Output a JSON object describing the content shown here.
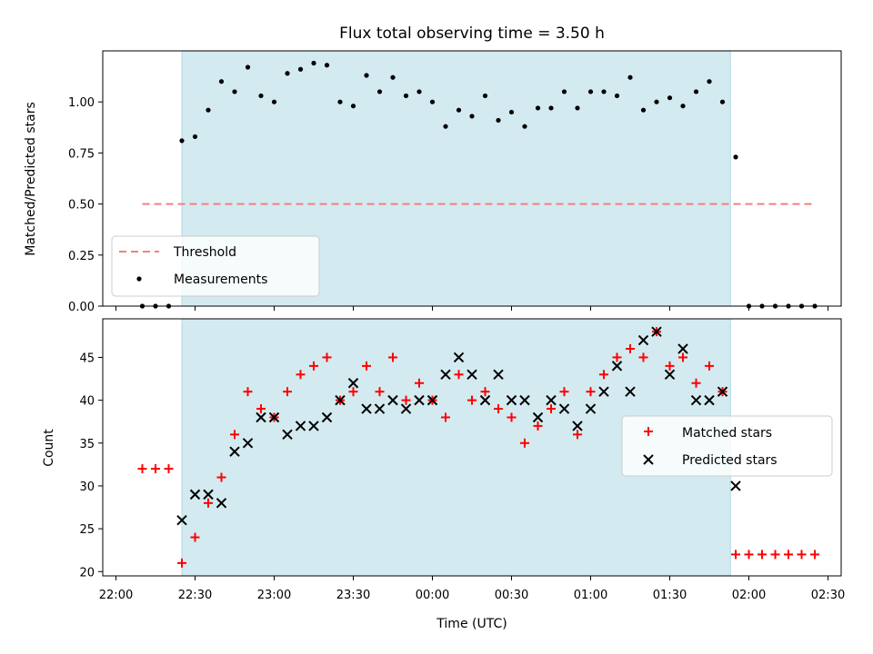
{
  "chart_data": [
    {
      "type": "scatter",
      "title": "Flux total observing time = 3.50 h",
      "xlabel": "",
      "ylabel": "Matched/Predicted stars",
      "ylim": [
        0,
        1.25
      ],
      "yticks": [
        0.0,
        0.25,
        0.5,
        0.75,
        1.0
      ],
      "ytick_labels": [
        "0.00",
        "0.25",
        "0.50",
        "0.75",
        "1.00"
      ],
      "xlim": [
        "21:55",
        "02:35"
      ],
      "shaded_region": [
        "22:25",
        "01:53"
      ],
      "grid": false,
      "legend_position": "lower-left",
      "threshold": {
        "name": "Threshold",
        "x": [
          "22:10",
          "02:25"
        ],
        "y": 0.5,
        "color": "#f08080"
      },
      "series": [
        {
          "name": "Measurements",
          "color": "#000000",
          "points": [
            [
              "22:10",
              0.0
            ],
            [
              "22:15",
              0.0
            ],
            [
              "22:20",
              0.0
            ],
            [
              "22:25",
              0.81
            ],
            [
              "22:30",
              0.83
            ],
            [
              "22:35",
              0.96
            ],
            [
              "22:40",
              1.1
            ],
            [
              "22:45",
              1.05
            ],
            [
              "22:50",
              1.17
            ],
            [
              "22:55",
              1.03
            ],
            [
              "23:00",
              1.0
            ],
            [
              "23:05",
              1.14
            ],
            [
              "23:10",
              1.16
            ],
            [
              "23:15",
              1.19
            ],
            [
              "23:20",
              1.18
            ],
            [
              "23:25",
              1.0
            ],
            [
              "23:30",
              0.98
            ],
            [
              "23:35",
              1.13
            ],
            [
              "23:40",
              1.05
            ],
            [
              "23:45",
              1.12
            ],
            [
              "23:50",
              1.03
            ],
            [
              "23:55",
              1.05
            ],
            [
              "00:00",
              1.0
            ],
            [
              "00:05",
              0.88
            ],
            [
              "00:10",
              0.96
            ],
            [
              "00:15",
              0.93
            ],
            [
              "00:20",
              1.03
            ],
            [
              "00:25",
              0.91
            ],
            [
              "00:30",
              0.95
            ],
            [
              "00:35",
              0.88
            ],
            [
              "00:40",
              0.97
            ],
            [
              "00:45",
              0.97
            ],
            [
              "00:50",
              1.05
            ],
            [
              "00:55",
              0.97
            ],
            [
              "01:00",
              1.05
            ],
            [
              "01:05",
              1.05
            ],
            [
              "01:10",
              1.03
            ],
            [
              "01:15",
              1.12
            ],
            [
              "01:20",
              0.96
            ],
            [
              "01:25",
              1.0
            ],
            [
              "01:30",
              1.02
            ],
            [
              "01:35",
              0.98
            ],
            [
              "01:40",
              1.05
            ],
            [
              "01:45",
              1.1
            ],
            [
              "01:50",
              1.0
            ],
            [
              "01:55",
              0.73
            ],
            [
              "02:00",
              0.0
            ],
            [
              "02:05",
              0.0
            ],
            [
              "02:10",
              0.0
            ],
            [
              "02:15",
              0.0
            ],
            [
              "02:20",
              0.0
            ],
            [
              "02:25",
              0.0
            ]
          ]
        }
      ]
    },
    {
      "type": "scatter",
      "title": "",
      "xlabel": "Time (UTC)",
      "ylabel": "Count",
      "ylim": [
        19.5,
        49.5
      ],
      "yticks": [
        20,
        25,
        30,
        35,
        40,
        45
      ],
      "xlim": [
        "21:55",
        "02:35"
      ],
      "xticks": [
        "22:00",
        "22:30",
        "23:00",
        "23:30",
        "00:00",
        "00:30",
        "01:00",
        "01:30",
        "02:00",
        "02:30"
      ],
      "shaded_region": [
        "22:25",
        "01:53"
      ],
      "grid": false,
      "legend_position": "center-right",
      "series": [
        {
          "name": "Matched stars",
          "marker": "plus",
          "color": "#ff0000",
          "points": [
            [
              "22:10",
              32
            ],
            [
              "22:15",
              32
            ],
            [
              "22:20",
              32
            ],
            [
              "22:25",
              21
            ],
            [
              "22:30",
              24
            ],
            [
              "22:35",
              28
            ],
            [
              "22:40",
              31
            ],
            [
              "22:45",
              36
            ],
            [
              "22:50",
              41
            ],
            [
              "22:55",
              39
            ],
            [
              "23:00",
              38
            ],
            [
              "23:05",
              41
            ],
            [
              "23:10",
              43
            ],
            [
              "23:15",
              44
            ],
            [
              "23:20",
              45
            ],
            [
              "23:25",
              40
            ],
            [
              "23:30",
              41
            ],
            [
              "23:35",
              44
            ],
            [
              "23:40",
              41
            ],
            [
              "23:45",
              45
            ],
            [
              "23:50",
              40
            ],
            [
              "23:55",
              42
            ],
            [
              "00:00",
              40
            ],
            [
              "00:05",
              38
            ],
            [
              "00:10",
              43
            ],
            [
              "00:15",
              40
            ],
            [
              "00:20",
              41
            ],
            [
              "00:25",
              39
            ],
            [
              "00:30",
              38
            ],
            [
              "00:35",
              35
            ],
            [
              "00:40",
              37
            ],
            [
              "00:45",
              39
            ],
            [
              "00:50",
              41
            ],
            [
              "00:55",
              36
            ],
            [
              "01:00",
              41
            ],
            [
              "01:05",
              43
            ],
            [
              "01:10",
              45
            ],
            [
              "01:15",
              46
            ],
            [
              "01:20",
              45
            ],
            [
              "01:25",
              48
            ],
            [
              "01:30",
              44
            ],
            [
              "01:35",
              45
            ],
            [
              "01:40",
              42
            ],
            [
              "01:45",
              44
            ],
            [
              "01:50",
              41
            ],
            [
              "01:55",
              22
            ],
            [
              "02:00",
              22
            ],
            [
              "02:05",
              22
            ],
            [
              "02:10",
              22
            ],
            [
              "02:15",
              22
            ],
            [
              "02:20",
              22
            ],
            [
              "02:25",
              22
            ]
          ]
        },
        {
          "name": "Predicted stars",
          "marker": "x",
          "color": "#000000",
          "points": [
            [
              "22:25",
              26
            ],
            [
              "22:30",
              29
            ],
            [
              "22:35",
              29
            ],
            [
              "22:40",
              28
            ],
            [
              "22:45",
              34
            ],
            [
              "22:50",
              35
            ],
            [
              "22:55",
              38
            ],
            [
              "23:00",
              38
            ],
            [
              "23:05",
              36
            ],
            [
              "23:10",
              37
            ],
            [
              "23:15",
              37
            ],
            [
              "23:20",
              38
            ],
            [
              "23:25",
              40
            ],
            [
              "23:30",
              42
            ],
            [
              "23:35",
              39
            ],
            [
              "23:40",
              39
            ],
            [
              "23:45",
              40
            ],
            [
              "23:50",
              39
            ],
            [
              "23:55",
              40
            ],
            [
              "00:00",
              40
            ],
            [
              "00:05",
              43
            ],
            [
              "00:10",
              45
            ],
            [
              "00:15",
              43
            ],
            [
              "00:20",
              40
            ],
            [
              "00:25",
              43
            ],
            [
              "00:30",
              40
            ],
            [
              "00:35",
              40
            ],
            [
              "00:40",
              38
            ],
            [
              "00:45",
              40
            ],
            [
              "00:50",
              39
            ],
            [
              "00:55",
              37
            ],
            [
              "01:00",
              39
            ],
            [
              "01:05",
              41
            ],
            [
              "01:10",
              44
            ],
            [
              "01:15",
              41
            ],
            [
              "01:20",
              47
            ],
            [
              "01:25",
              48
            ],
            [
              "01:30",
              43
            ],
            [
              "01:35",
              46
            ],
            [
              "01:40",
              40
            ],
            [
              "01:45",
              40
            ],
            [
              "01:50",
              41
            ],
            [
              "01:55",
              30
            ]
          ]
        }
      ]
    }
  ],
  "colors": {
    "shade": "#d3eaf0",
    "shade_edge": "#add8e6",
    "threshold": "#f08080",
    "matched": "#ff0000",
    "predicted": "#000000",
    "measurements": "#000000"
  }
}
